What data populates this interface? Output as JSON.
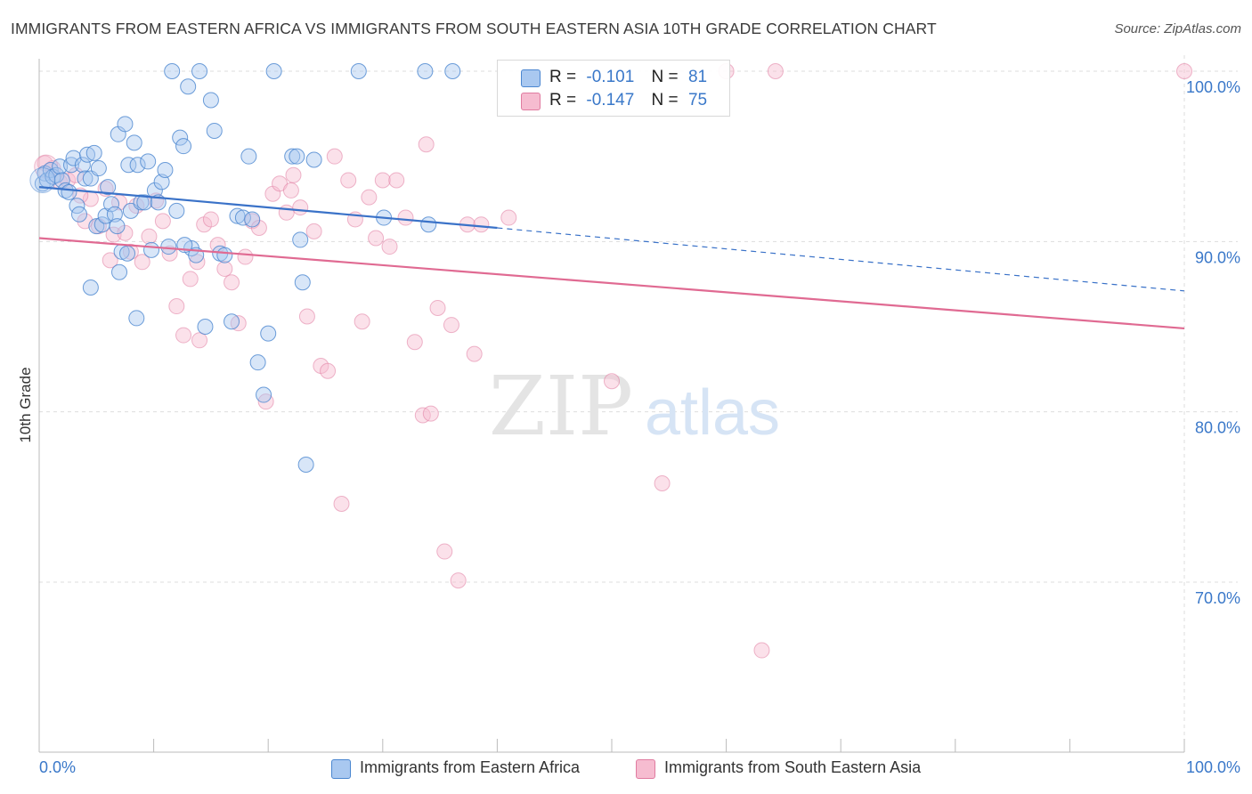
{
  "title": "IMMIGRANTS FROM EASTERN AFRICA VS IMMIGRANTS FROM SOUTH EASTERN ASIA 10TH GRADE CORRELATION CHART",
  "source": "Source: ZipAtlas.com",
  "watermark": {
    "zip": "ZIP",
    "atlas": "atlas"
  },
  "legend": {
    "rows": [
      {
        "r_label": "R =",
        "r_value": "-0.101",
        "n_label": "N =",
        "n_value": "81"
      },
      {
        "r_label": "R =",
        "r_value": "-0.147",
        "n_label": "N =",
        "n_value": "75"
      }
    ]
  },
  "colors": {
    "series_a_fill": "#a9c8f0",
    "series_a_stroke": "#4a86d0",
    "series_a_line": "#3a72c8",
    "series_b_fill": "#f6bcd0",
    "series_b_stroke": "#e07ba0",
    "series_b_line": "#e06a92",
    "axis_label": "#3a78c9",
    "grid": "#dddddd"
  },
  "chart_data": {
    "type": "scatter",
    "title": "IMMIGRANTS FROM EASTERN AFRICA VS IMMIGRANTS FROM SOUTH EASTERN ASIA 10TH GRADE CORRELATION CHART",
    "xlabel": "",
    "ylabel": "10th Grade",
    "xlim": [
      0,
      100
    ],
    "ylim": [
      60,
      100
    ],
    "x_tick_labels": [
      "0.0%",
      "100.0%"
    ],
    "y_ticks": [
      70,
      80,
      90,
      100
    ],
    "y_tick_labels": [
      "70.0%",
      "80.0%",
      "90.0%",
      "100.0%"
    ],
    "grid": true,
    "legend_position": "top-center",
    "series": [
      {
        "name": "Immigrants from Eastern Africa",
        "r": -0.101,
        "n": 81,
        "trend": {
          "x0": 0,
          "y0": 93.2,
          "x1": 40,
          "y1": 90.8,
          "dashed_to_x": 100,
          "dashed_to_y": 87.1
        },
        "points": [
          [
            0.3,
            93.4
          ],
          [
            0.5,
            94.0
          ],
          [
            0.7,
            93.6
          ],
          [
            1.0,
            94.2
          ],
          [
            1.2,
            93.8
          ],
          [
            1.5,
            93.9
          ],
          [
            1.8,
            94.4
          ],
          [
            2.0,
            93.6
          ],
          [
            2.3,
            93.0
          ],
          [
            2.6,
            92.9
          ],
          [
            2.8,
            94.5
          ],
          [
            3.0,
            94.9
          ],
          [
            3.3,
            92.1
          ],
          [
            3.5,
            91.6
          ],
          [
            3.8,
            94.5
          ],
          [
            4.0,
            93.7
          ],
          [
            4.2,
            95.1
          ],
          [
            4.5,
            93.7
          ],
          [
            4.8,
            95.2
          ],
          [
            5.0,
            90.9
          ],
          [
            5.2,
            94.3
          ],
          [
            5.5,
            91.0
          ],
          [
            5.8,
            91.5
          ],
          [
            6.0,
            93.2
          ],
          [
            6.3,
            92.2
          ],
          [
            6.6,
            91.6
          ],
          [
            6.9,
            96.3
          ],
          [
            7.2,
            89.4
          ],
          [
            7.5,
            96.9
          ],
          [
            7.8,
            94.5
          ],
          [
            8.0,
            91.8
          ],
          [
            8.3,
            95.8
          ],
          [
            8.6,
            94.5
          ],
          [
            8.9,
            92.3
          ],
          [
            9.2,
            92.3
          ],
          [
            9.5,
            94.7
          ],
          [
            9.8,
            89.5
          ],
          [
            10.1,
            93.0
          ],
          [
            10.4,
            92.3
          ],
          [
            10.7,
            93.5
          ],
          [
            11.0,
            94.2
          ],
          [
            11.3,
            89.7
          ],
          [
            11.6,
            100.0
          ],
          [
            12.0,
            91.8
          ],
          [
            12.3,
            96.1
          ],
          [
            12.6,
            95.6
          ],
          [
            13.0,
            99.1
          ],
          [
            13.3,
            89.6
          ],
          [
            13.7,
            89.2
          ],
          [
            14.0,
            100.0
          ],
          [
            14.5,
            85.0
          ],
          [
            15.0,
            98.3
          ],
          [
            15.3,
            96.5
          ],
          [
            15.8,
            89.3
          ],
          [
            16.2,
            89.2
          ],
          [
            16.8,
            85.3
          ],
          [
            17.3,
            91.5
          ],
          [
            17.8,
            91.4
          ],
          [
            18.3,
            95.0
          ],
          [
            18.6,
            91.3
          ],
          [
            19.1,
            82.9
          ],
          [
            19.6,
            81.0
          ],
          [
            20.0,
            84.6
          ],
          [
            20.5,
            100.0
          ],
          [
            22.1,
            95.0
          ],
          [
            22.8,
            90.1
          ],
          [
            23.0,
            87.6
          ],
          [
            23.3,
            76.9
          ],
          [
            24.0,
            94.8
          ],
          [
            27.9,
            100.0
          ],
          [
            30.1,
            91.4
          ],
          [
            33.7,
            100.0
          ],
          [
            34.0,
            91.0
          ],
          [
            36.1,
            100.0
          ],
          [
            7.0,
            88.2
          ],
          [
            7.7,
            89.3
          ],
          [
            4.5,
            87.3
          ],
          [
            8.5,
            85.5
          ],
          [
            12.7,
            89.8
          ],
          [
            6.8,
            90.9
          ],
          [
            22.5,
            95.0
          ]
        ]
      },
      {
        "name": "Immigrants from South Eastern Asia",
        "r": -0.147,
        "n": 75,
        "trend": {
          "x0": 0,
          "y0": 90.2,
          "x1": 100,
          "y1": 84.9
        },
        "points": [
          [
            0.5,
            94.6
          ],
          [
            1.2,
            94.3
          ],
          [
            1.8,
            93.5
          ],
          [
            2.5,
            93.6
          ],
          [
            3.2,
            93.9
          ],
          [
            4.0,
            91.2
          ],
          [
            4.5,
            92.5
          ],
          [
            5.2,
            90.9
          ],
          [
            5.8,
            93.1
          ],
          [
            6.5,
            90.4
          ],
          [
            7.0,
            92.3
          ],
          [
            7.5,
            90.5
          ],
          [
            8.0,
            89.4
          ],
          [
            8.5,
            92.1
          ],
          [
            9.0,
            88.8
          ],
          [
            9.6,
            90.3
          ],
          [
            10.2,
            92.4
          ],
          [
            10.8,
            91.2
          ],
          [
            11.4,
            89.3
          ],
          [
            12.0,
            86.2
          ],
          [
            12.6,
            84.5
          ],
          [
            13.2,
            87.8
          ],
          [
            13.8,
            88.8
          ],
          [
            14.4,
            91.0
          ],
          [
            15.0,
            91.3
          ],
          [
            15.6,
            89.8
          ],
          [
            16.2,
            88.4
          ],
          [
            16.8,
            87.6
          ],
          [
            17.4,
            85.2
          ],
          [
            18.0,
            89.1
          ],
          [
            18.6,
            91.2
          ],
          [
            19.2,
            90.8
          ],
          [
            19.8,
            80.6
          ],
          [
            20.4,
            92.8
          ],
          [
            21.0,
            93.4
          ],
          [
            21.6,
            91.7
          ],
          [
            22.2,
            93.9
          ],
          [
            22.8,
            92.0
          ],
          [
            23.4,
            85.6
          ],
          [
            24.0,
            90.6
          ],
          [
            24.6,
            82.7
          ],
          [
            25.2,
            82.4
          ],
          [
            25.8,
            95.0
          ],
          [
            26.4,
            74.6
          ],
          [
            27.0,
            93.6
          ],
          [
            27.6,
            91.3
          ],
          [
            28.2,
            85.3
          ],
          [
            28.8,
            92.6
          ],
          [
            29.4,
            90.2
          ],
          [
            30.0,
            93.6
          ],
          [
            30.6,
            89.7
          ],
          [
            31.2,
            93.6
          ],
          [
            32.0,
            91.4
          ],
          [
            32.8,
            84.1
          ],
          [
            33.5,
            79.8
          ],
          [
            33.8,
            95.7
          ],
          [
            34.2,
            79.9
          ],
          [
            34.8,
            86.1
          ],
          [
            35.4,
            71.8
          ],
          [
            36.0,
            85.1
          ],
          [
            36.6,
            70.1
          ],
          [
            37.4,
            91.0
          ],
          [
            38.0,
            83.4
          ],
          [
            38.6,
            91.0
          ],
          [
            41.0,
            91.4
          ],
          [
            50.0,
            81.8
          ],
          [
            54.4,
            75.8
          ],
          [
            60.0,
            100.0
          ],
          [
            63.1,
            66.0
          ],
          [
            64.3,
            100.0
          ],
          [
            100.0,
            100.0
          ],
          [
            3.6,
            92.7
          ],
          [
            6.2,
            88.9
          ],
          [
            14.0,
            84.2
          ],
          [
            22.0,
            93.0
          ]
        ]
      }
    ]
  },
  "bottom_legend": [
    {
      "label": "Immigrants from Eastern Africa"
    },
    {
      "label": "Immigrants from South Eastern Asia"
    }
  ]
}
